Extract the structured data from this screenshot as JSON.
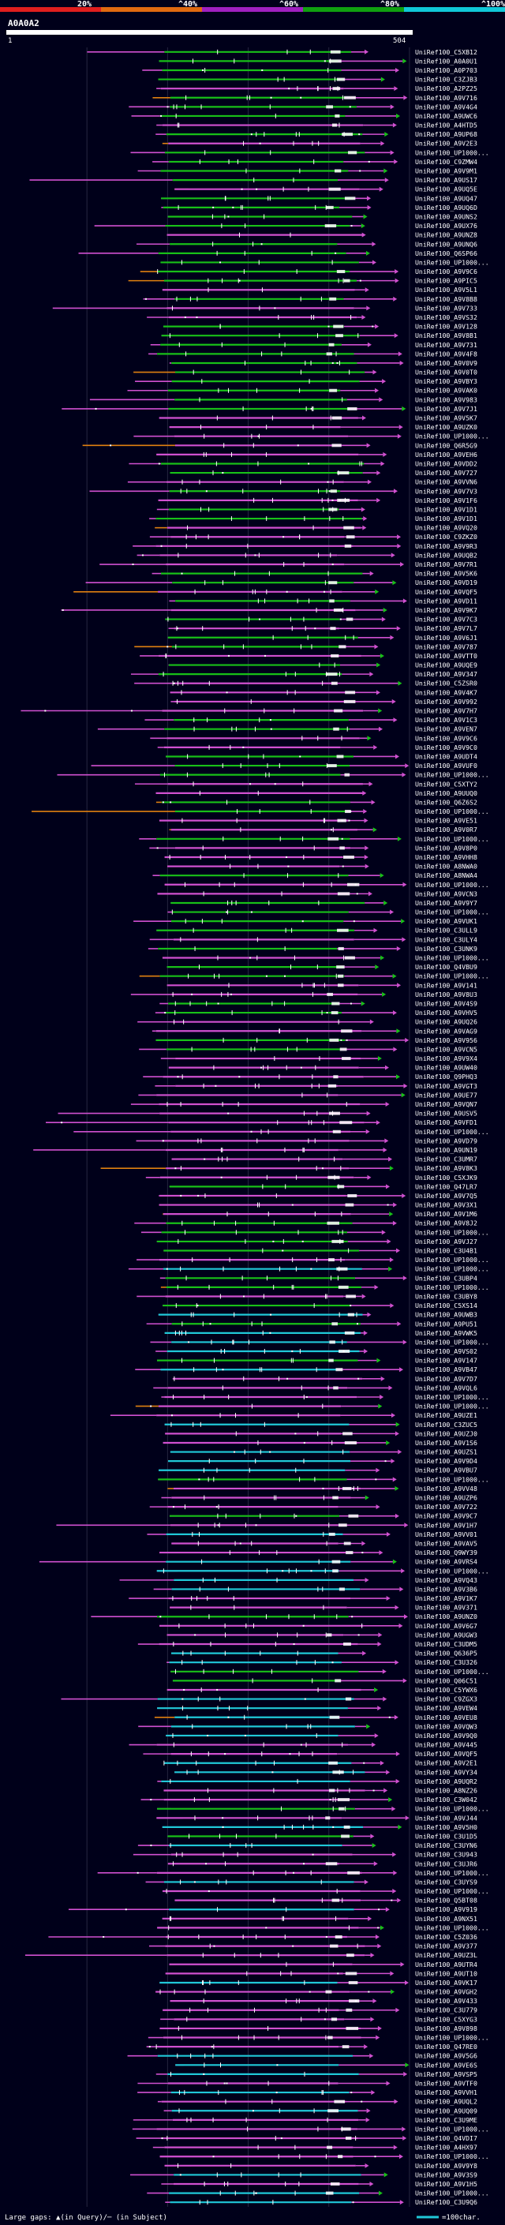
{
  "title": "A0A0A2",
  "query": {
    "label": "A0A0A2",
    "start_label": "1",
    "end_label": "504",
    "length": 504
  },
  "legend_top": {
    "ticks": [
      "20%",
      "^40%",
      "^60%",
      "^80%",
      "^100%"
    ],
    "colors": [
      "#e01e1e",
      "#e06a10",
      "#a020c0",
      "#10a010",
      "#10c8d8"
    ]
  },
  "hit_colors": {
    "magenta": "#d050d0",
    "green": "#18c018",
    "cyan": "#20c8d8",
    "orange": "#e08010",
    "dark": "#5a2a5a",
    "white": "#ffffff"
  },
  "labels": [
    "UniRef100_C5XB12",
    "UniRef100_A0A0U1",
    "UniRef100_A0P703",
    "UniRef100_C3ZJB3",
    "UniRef100_A2PZ25",
    "UniRef100_A9V716",
    "UniRef100_A9V4G4",
    "UniRef100_A9UWC6",
    "UniRef100_A4HTD5",
    "UniRef100_A9UP68",
    "UniRef100_A9V2E3",
    "UniRef100_UP1000...",
    "UniRef100_C9ZMW4",
    "UniRef100_A9V9M1",
    "UniRef100_A9US17",
    "UniRef100_A9UQ5E",
    "UniRef100_A9UQ47",
    "UniRef100_A9UQ6D",
    "UniRef100_A9UNS2",
    "UniRef100_A9UX76",
    "UniRef100_A9UNZ8",
    "UniRef100_A9UNQ6",
    "UniRef100_Q6SP66",
    "UniRef100_UP1000...",
    "UniRef100_A9V9C6",
    "UniRef100_A9PIC5",
    "UniRef100_A9V5L1",
    "UniRef100_A9V8B8",
    "UniRef100_A9V733",
    "UniRef100_A9VS32",
    "UniRef100_A9V128",
    "UniRef100_A9V8B1",
    "UniRef100_A9V731",
    "UniRef100_A9V4F8",
    "UniRef100_A9V0V9",
    "UniRef100_A9V0T0",
    "UniRef100_A9VBY3",
    "UniRef100_A9VAK0",
    "UniRef100_A9V983",
    "UniRef100_A9V7J1",
    "UniRef100_A9V5K7",
    "UniRef100_A9UZK0",
    "UniRef100_UP1000...",
    "UniRef100_Q6R5G9",
    "UniRef100_A9VEH6",
    "UniRef100_A9VDD2",
    "UniRef100_A9V727",
    "UniRef100_A9VVN6",
    "UniRef100_A9V7V3",
    "UniRef100_A9V1F6",
    "UniRef100_A9V1D1",
    "UniRef100_A9V1D1",
    "UniRef100_A9VQ20",
    "UniRef100_C9ZKZ0",
    "UniRef100_A9V9R3",
    "UniRef100_A9UQB2",
    "UniRef100_A9V7R1",
    "UniRef100_A9V5K6",
    "UniRef100_A9VD19",
    "UniRef100_A9VQF5",
    "UniRef100_A9VD11",
    "UniRef100_A9V9K7",
    "UniRef100_A9V7C3",
    "UniRef100_A9V7L7",
    "UniRef100_A9V6J1",
    "UniRef100_A9V787",
    "UniRef100_A9VTT0",
    "UniRef100_A9UQE9",
    "UniRef100_A9V347",
    "UniRef100_C5ZSR0",
    "UniRef100_A9V4K7",
    "UniRef100_A9V992",
    "UniRef100_A9V7H7",
    "UniRef100_A9V1C3",
    "UniRef100_A9VEN7",
    "UniRef100_A9V9C6",
    "UniRef100_A9V9C0",
    "UniRef100_A9UDT4",
    "UniRef100_A9VUF0",
    "UniRef100_UP1000...",
    "UniRef100_C5XTY2",
    "UniRef100_A9UUQ0",
    "UniRef100_Q6Z6S2",
    "UniRef100_UP1000...",
    "UniRef100_A9VE51",
    "UniRef100_A9V0R7",
    "UniRef100_UP1000...",
    "UniRef100_A9V8P0",
    "UniRef100_A9VHH8",
    "UniRef100_A8NWA0",
    "UniRef100_A8NWA4",
    "UniRef100_UP1000...",
    "UniRef100_A9VCN3",
    "UniRef100_A9V9Y7",
    "UniRef100_UP1000...",
    "UniRef100_A9VUK1",
    "UniRef100_C3ULL9",
    "UniRef100_C3ULY4",
    "UniRef100_C3UNK9",
    "UniRef100_UP1000...",
    "UniRef100_Q4VBU9",
    "UniRef100_UP1000...",
    "UniRef100_A9V141",
    "UniRef100_A9V8U3",
    "UniRef100_A9V4S9",
    "UniRef100_A9VHV5",
    "UniRef100_A9UQ26",
    "UniRef100_A9VAG9",
    "UniRef100_A9V956",
    "UniRef100_A9VCN5",
    "UniRef100_A9V9X4",
    "UniRef100_A9UW40",
    "UniRef100_Q9PHQ3",
    "UniRef100_A9VGT3",
    "UniRef100_A9UE77",
    "UniRef100_A9VQN7",
    "UniRef100_A9USV5",
    "UniRef100_A9VFD1",
    "UniRef100_UP1000...",
    "UniRef100_A9VD79",
    "UniRef100_A9UN19",
    "UniRef100_C3UMR7",
    "UniRef100_A9V8K3",
    "UniRef100_C5XJK9",
    "UniRef100_Q47LR7",
    "UniRef100_A9V7Q5",
    "UniRef100_A9V3X1",
    "UniRef100_A9V1M6",
    "UniRef100_A9V8J2",
    "UniRef100_UP1000...",
    "UniRef100_A9VJ27",
    "UniRef100_C3U4B1",
    "UniRef100_UP1000...",
    "UniRef100_UP1000...",
    "UniRef100_C3UBP4",
    "UniRef100_UP1000...",
    "UniRef100_C3UBY8",
    "UniRef100_C5XS14",
    "UniRef100_A9UWB3",
    "UniRef100_A9PU51",
    "UniRef100_A9VWK5",
    "UniRef100_UP1000...",
    "UniRef100_A9VS02",
    "UniRef100_A9V147",
    "UniRef100_A9VB47",
    "UniRef100_A9V7D7",
    "UniRef100_A9VQL6",
    "UniRef100_UP1000...",
    "UniRef100_UP1000...",
    "UniRef100_A9UZE1",
    "UniRef100_C3ZUC5",
    "UniRef100_A9UZJ0",
    "UniRef100_A9V1S6",
    "UniRef100_A9UZS1",
    "UniRef100_A9V9D4",
    "UniRef100_A9VBU7",
    "UniRef100_UP1000...",
    "UniRef100_A9VV48",
    "UniRef100_A9UZP6",
    "UniRef100_A9V722",
    "UniRef100_A9V9C7",
    "UniRef100_A9V1H7",
    "UniRef100_A9VV01",
    "UniRef100_A9VAV5",
    "UniRef100_Q9WY39",
    "UniRef100_A9VRS4",
    "UniRef100_UP1000...",
    "UniRef100_A9VQ43",
    "UniRef100_A9V3B6",
    "UniRef100_A9V1K7",
    "UniRef100_A9V371",
    "UniRef100_A9UNZ0",
    "UniRef100_A9V6G7",
    "UniRef100_A9UGW3",
    "UniRef100_C3UDM5",
    "UniRef100_Q636P5",
    "UniRef100_C3U326",
    "UniRef100_UP1000...",
    "UniRef100_Q06C51",
    "UniRef100_C5YWX6",
    "UniRef100_C9ZGX3",
    "UniRef100_A9VEW4",
    "UniRef100_A9VEU8",
    "UniRef100_A9VQW3",
    "UniRef100_A9V9Q0",
    "UniRef100_A9V445",
    "UniRef100_A9VQF5",
    "UniRef100_A9V2E1",
    "UniRef100_A9VY34",
    "UniRef100_A9UQR2",
    "UniRef100_A8NZ26",
    "UniRef100_C3W042",
    "UniRef100_UP1000...",
    "UniRef100_A9VJ44",
    "UniRef100_A9V5H0",
    "UniRef100_C3U1D5",
    "UniRef100_C3UYN6",
    "UniRef100_C3U943",
    "UniRef100_C3UJR6",
    "UniRef100_UP1000...",
    "UniRef100_C3UYS9",
    "UniRef100_UP1000...",
    "UniRef100_Q5BT08",
    "UniRef100_A9V919",
    "UniRef100_A9NX51",
    "UniRef100_UP1000...",
    "UniRef100_C5Z036",
    "UniRef100_A9V377",
    "UniRef100_A9UZ3L",
    "UniRef100_A9UTR4",
    "UniRef100_A9UT10",
    "UniRef100_A9VK17",
    "UniRef100_A9VGH2",
    "UniRef100_A9V433",
    "UniRef100_C3U779",
    "UniRef100_C5XYG3",
    "UniRef100_A9V898",
    "UniRef100_UP1000...",
    "UniRef100_Q47RE0",
    "UniRef100_A9V5G6",
    "UniRef100_A9VE6S",
    "UniRef100_A9VSP5",
    "UniRef100_A9VTF0",
    "UniRef100_A9VVH1",
    "UniRef100_A9UQL2",
    "UniRef100_A9UQ09",
    "UniRef100_C3U9ME",
    "UniRef100_UP1000...",
    "UniRef100_Q4VDI7",
    "UniRef100_A4HX97",
    "UniRef100_UP1000...",
    "UniRef100_A9V9Y8",
    "UniRef100_A9V3S9",
    "UniRef100_A9V1H5",
    "UniRef100_UP1000...",
    "UniRef100_C3U9Q6"
  ],
  "footer": {
    "large_gaps": "Large gaps: ▲(in Query)/─ (in Subject)",
    "scale": "=100char."
  }
}
